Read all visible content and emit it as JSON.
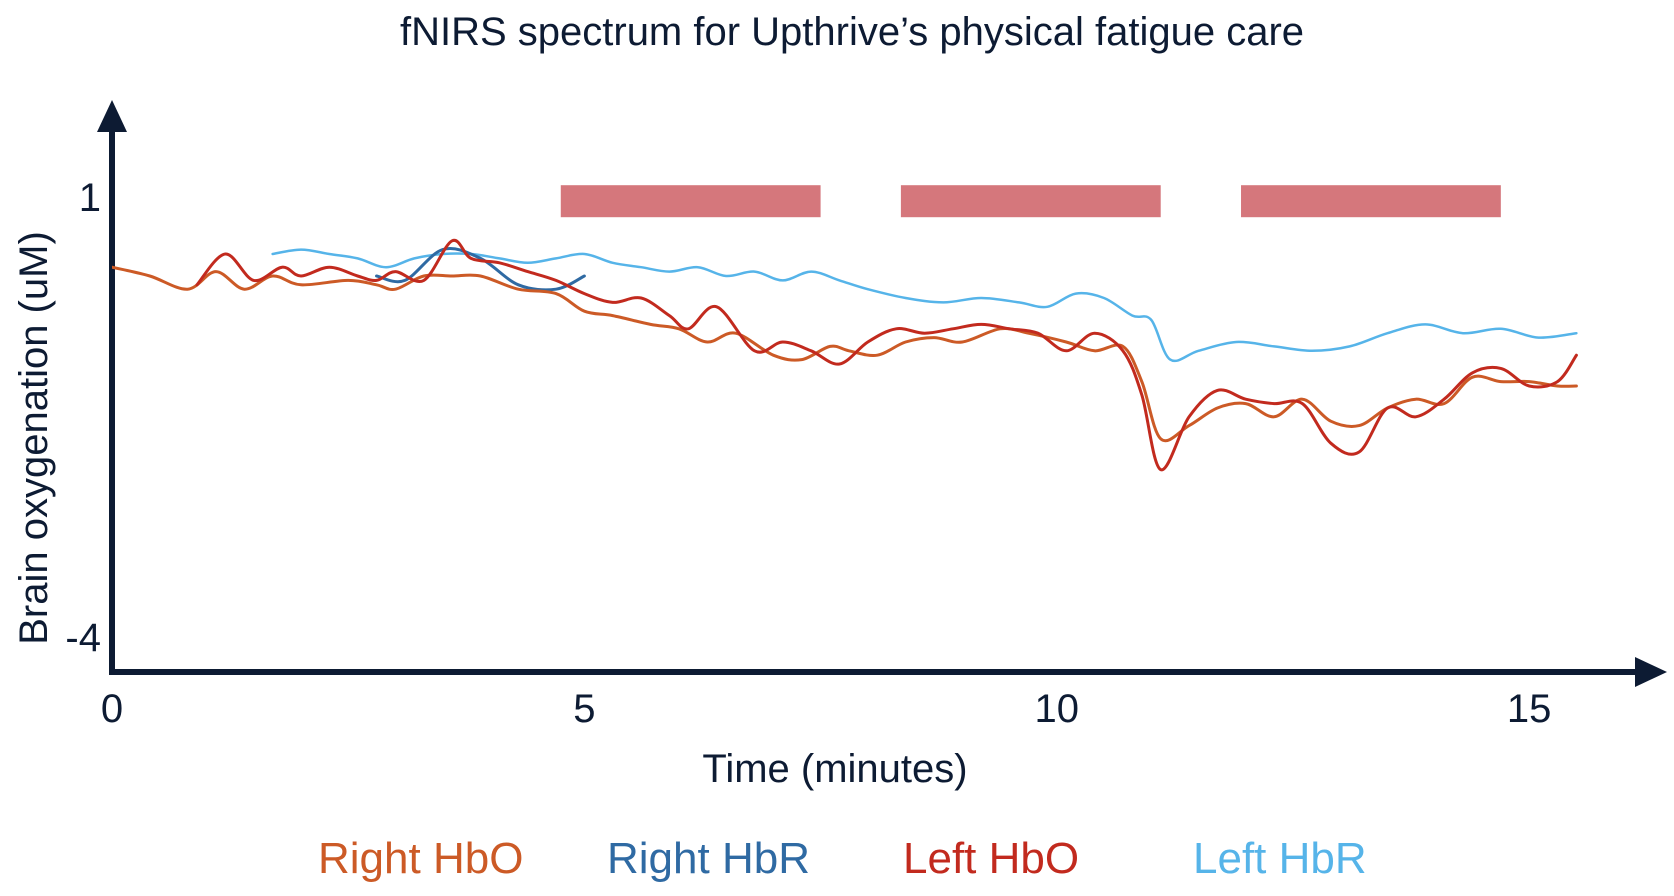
{
  "chart_data": {
    "type": "line",
    "title": "fNIRS spectrum for Upthrive’s physical fatigue care",
    "xlabel": "Time (minutes)",
    "ylabel": "Brain oxygenation (uM)",
    "xlim": [
      0,
      16.3
    ],
    "ylim": [
      -4.4,
      2.1
    ],
    "x_ticks": [
      0,
      5,
      10,
      15
    ],
    "x_tick_labels": [
      "0",
      "5",
      "10",
      "15"
    ],
    "y_ticks": [
      1,
      -4
    ],
    "y_tick_labels": [
      "1",
      "-4"
    ],
    "grid": false,
    "legend_position": "bottom",
    "bars": [
      {
        "x_start": 4.75,
        "x_end": 7.5,
        "y": 0.95,
        "color": "#d5777c"
      },
      {
        "x_start": 8.35,
        "x_end": 11.1,
        "y": 0.95,
        "color": "#d5777c"
      },
      {
        "x_start": 11.95,
        "x_end": 14.7,
        "y": 0.95,
        "color": "#d5777c"
      }
    ],
    "series": [
      {
        "name": "Right HbO",
        "color": "#cc5a26",
        "x": [
          0,
          0.4,
          0.8,
          1.1,
          1.4,
          1.7,
          2.0,
          2.5,
          2.8,
          3.0,
          3.3,
          3.6,
          3.9,
          4.3,
          4.7,
          5.0,
          5.3,
          5.7,
          6.0,
          6.3,
          6.6,
          7.0,
          7.3,
          7.6,
          7.8,
          8.1,
          8.4,
          8.7,
          9.0,
          9.4,
          9.7,
          10.1,
          10.4,
          10.7,
          10.9,
          11.1,
          11.4,
          11.7,
          12.0,
          12.3,
          12.6,
          12.9,
          13.2,
          13.5,
          13.8,
          14.1,
          14.4,
          14.7,
          15.0,
          15.3,
          15.5
        ],
        "y": [
          0.2,
          0.1,
          -0.05,
          0.15,
          -0.05,
          0.1,
          0.0,
          0.05,
          0.0,
          -0.05,
          0.1,
          0.1,
          0.1,
          -0.05,
          -0.1,
          -0.3,
          -0.35,
          -0.45,
          -0.5,
          -0.65,
          -0.55,
          -0.8,
          -0.85,
          -0.7,
          -0.75,
          -0.8,
          -0.65,
          -0.6,
          -0.65,
          -0.5,
          -0.55,
          -0.65,
          -0.75,
          -0.7,
          -1.1,
          -1.75,
          -1.6,
          -1.4,
          -1.35,
          -1.5,
          -1.3,
          -1.55,
          -1.6,
          -1.4,
          -1.3,
          -1.35,
          -1.05,
          -1.1,
          -1.1,
          -1.15,
          -1.15
        ]
      },
      {
        "name": "Right HbR",
        "color": "#2f6aa3",
        "x": [
          2.8,
          3.1,
          3.5,
          3.9,
          4.3,
          4.7,
          5.0
        ],
        "y": [
          0.1,
          0.05,
          0.4,
          0.3,
          0.0,
          -0.05,
          0.1
        ]
      },
      {
        "name": "Left HbO",
        "color": "#c22a1e",
        "x": [
          0.9,
          1.2,
          1.5,
          1.8,
          2.0,
          2.3,
          2.6,
          2.8,
          3.0,
          3.3,
          3.6,
          3.8,
          4.1,
          4.4,
          4.7,
          5.0,
          5.3,
          5.6,
          5.9,
          6.1,
          6.4,
          6.8,
          7.1,
          7.4,
          7.7,
          8.0,
          8.3,
          8.6,
          8.9,
          9.2,
          9.5,
          9.8,
          10.1,
          10.4,
          10.7,
          10.9,
          11.1,
          11.4,
          11.7,
          12.0,
          12.3,
          12.6,
          12.9,
          13.2,
          13.5,
          13.8,
          14.1,
          14.4,
          14.7,
          15.0,
          15.3,
          15.5
        ],
        "y": [
          0.0,
          0.35,
          0.05,
          0.2,
          0.1,
          0.2,
          0.1,
          0.05,
          0.15,
          0.05,
          0.5,
          0.3,
          0.25,
          0.15,
          0.05,
          -0.1,
          -0.2,
          -0.15,
          -0.35,
          -0.5,
          -0.25,
          -0.75,
          -0.65,
          -0.75,
          -0.9,
          -0.65,
          -0.5,
          -0.55,
          -0.5,
          -0.45,
          -0.5,
          -0.55,
          -0.75,
          -0.55,
          -0.75,
          -1.25,
          -2.1,
          -1.5,
          -1.2,
          -1.3,
          -1.35,
          -1.35,
          -1.8,
          -1.9,
          -1.4,
          -1.5,
          -1.3,
          -1.0,
          -0.95,
          -1.15,
          -1.1,
          -0.8
        ]
      },
      {
        "name": "Left HbR",
        "color": "#56b4e9",
        "x": [
          1.7,
          2.0,
          2.3,
          2.6,
          2.9,
          3.2,
          3.5,
          3.8,
          4.1,
          4.4,
          4.7,
          5.0,
          5.3,
          5.6,
          5.9,
          6.2,
          6.5,
          6.8,
          7.1,
          7.4,
          7.7,
          8.0,
          8.4,
          8.8,
          9.2,
          9.6,
          9.9,
          10.2,
          10.5,
          10.8,
          11.0,
          11.2,
          11.5,
          11.9,
          12.3,
          12.7,
          13.1,
          13.5,
          13.9,
          14.3,
          14.7,
          15.1,
          15.5
        ],
        "y": [
          0.35,
          0.4,
          0.35,
          0.3,
          0.2,
          0.3,
          0.35,
          0.35,
          0.3,
          0.25,
          0.3,
          0.35,
          0.25,
          0.2,
          0.15,
          0.2,
          0.1,
          0.15,
          0.05,
          0.15,
          0.05,
          -0.05,
          -0.15,
          -0.2,
          -0.15,
          -0.2,
          -0.25,
          -0.1,
          -0.15,
          -0.35,
          -0.4,
          -0.85,
          -0.75,
          -0.65,
          -0.7,
          -0.75,
          -0.7,
          -0.55,
          -0.45,
          -0.55,
          -0.5,
          -0.6,
          -0.55
        ]
      }
    ]
  }
}
